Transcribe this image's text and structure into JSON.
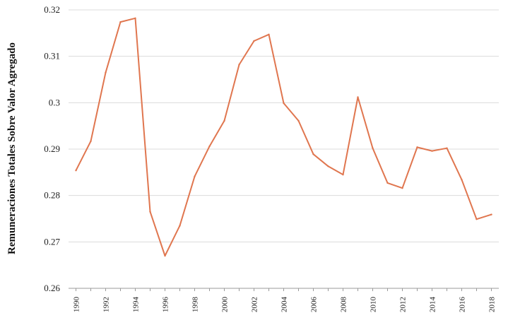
{
  "colors": {
    "series": "#e0764f",
    "grid": "#dcdcdc"
  },
  "chart_data": {
    "type": "line",
    "title": "",
    "xlabel": "",
    "ylabel": "Remuneraciones Totales Sobre Valor Agregado",
    "ylim": [
      0.26,
      0.32
    ],
    "yticks": [
      "0.26",
      "0.27",
      "0.28",
      "0.29",
      "0.3",
      "0.31",
      "0.32"
    ],
    "grid": "horizontal",
    "xtick_labels": [
      "1990",
      "1992",
      "1994",
      "1996",
      "1998",
      "2000",
      "2002",
      "2004",
      "2006",
      "2008",
      "2010",
      "2012",
      "2014",
      "2016",
      "2018"
    ],
    "x": [
      1990,
      1991,
      1992,
      1993,
      1994,
      1995,
      1996,
      1997,
      1998,
      1999,
      2000,
      2001,
      2002,
      2003,
      2004,
      2005,
      2006,
      2007,
      2008,
      2009,
      2010,
      2011,
      2012,
      2013,
      2014,
      2015,
      2016,
      2017,
      2018
    ],
    "series": [
      {
        "values": [
          0.2854,
          0.2917,
          0.3065,
          0.3174,
          0.3182,
          0.2765,
          0.267,
          0.2735,
          0.2841,
          0.2906,
          0.2961,
          0.3082,
          0.3133,
          0.3147,
          0.2999,
          0.2961,
          0.2889,
          0.2863,
          0.2845,
          0.3012,
          0.2902,
          0.2827,
          0.2816,
          0.2904,
          0.2896,
          0.2902,
          0.2834,
          0.2749,
          0.2759
        ]
      }
    ]
  }
}
